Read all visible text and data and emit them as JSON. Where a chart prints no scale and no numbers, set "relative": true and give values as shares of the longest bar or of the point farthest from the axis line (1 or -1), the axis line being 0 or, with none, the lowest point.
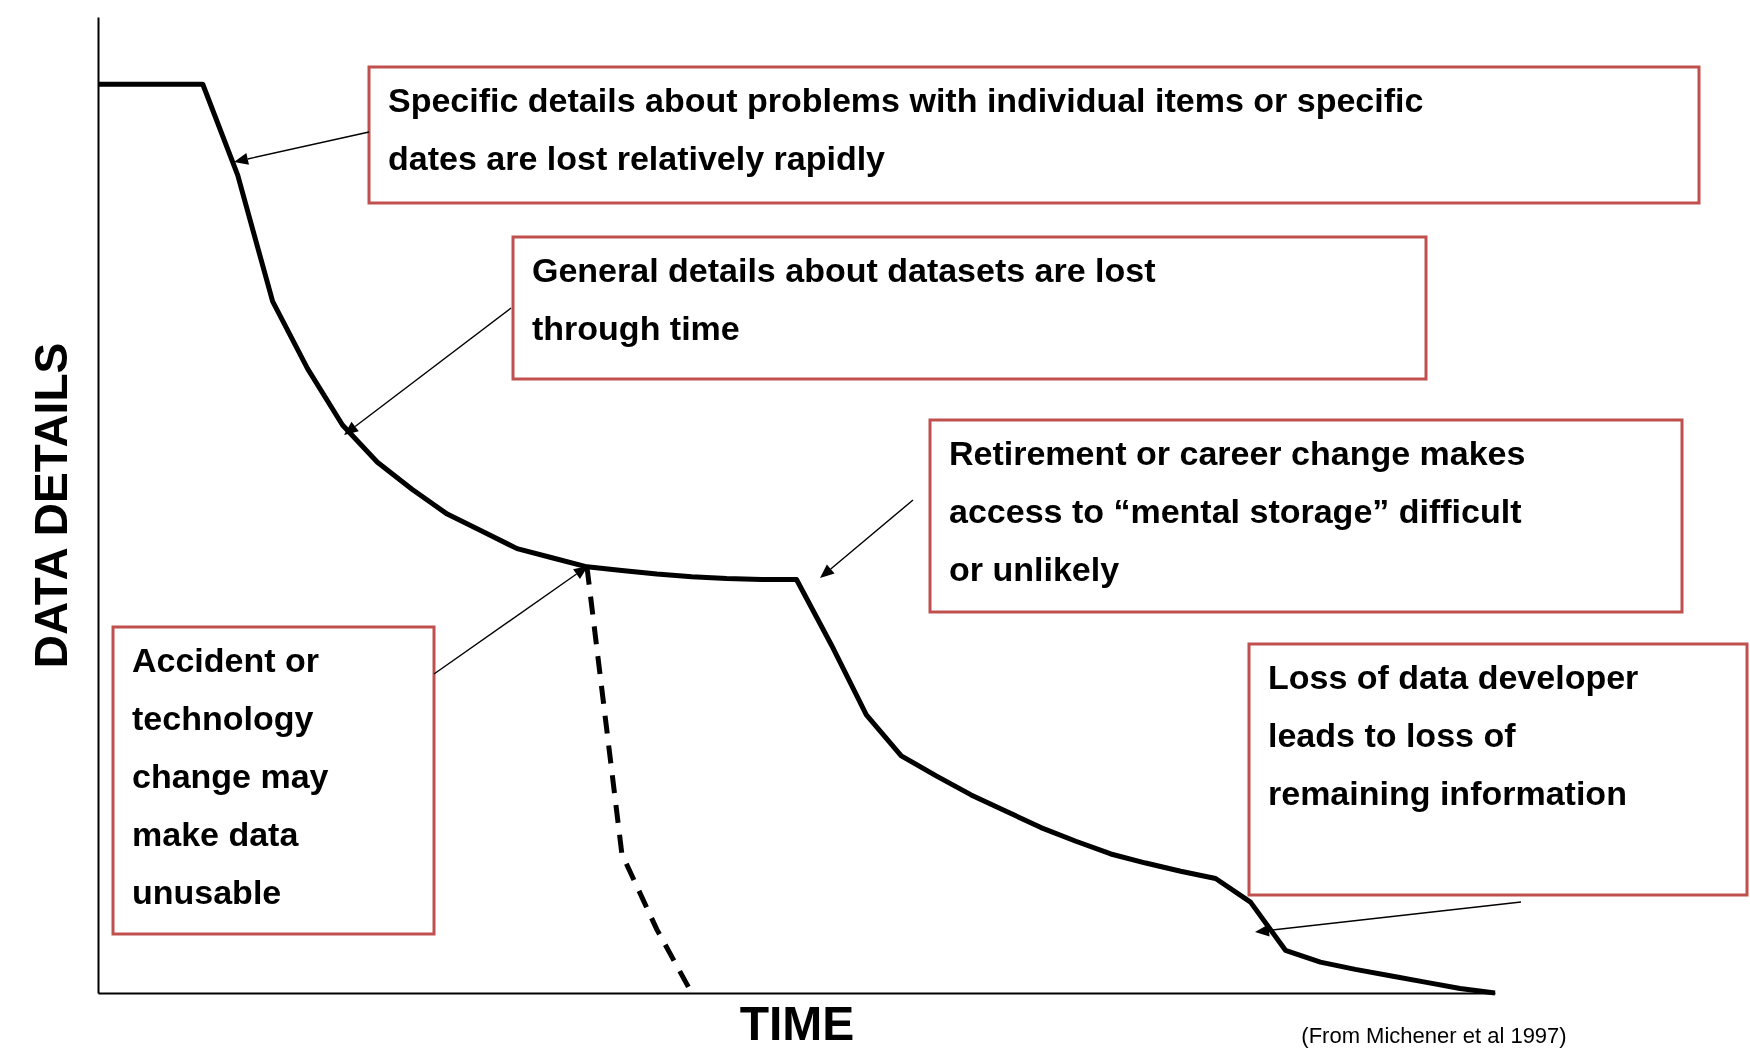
{
  "chart_data": {
    "type": "line",
    "relative": true,
    "xlabel": "TIME",
    "ylabel": "DATA DETAILS",
    "tick_labels": false,
    "categories": [
      null,
      null,
      null,
      null,
      null,
      null,
      null,
      null,
      null,
      null,
      null,
      null,
      null,
      null,
      null,
      null,
      null,
      null,
      null,
      null,
      null,
      null,
      null,
      null,
      null,
      null,
      null,
      null,
      null,
      null,
      null,
      null,
      null,
      null,
      null,
      null,
      null,
      null,
      null,
      null,
      null
    ],
    "series": [
      {
        "color": "#000000",
        "line_style": "solid",
        "values": [
          1,
          1,
          1,
          1,
          0.9,
          0.761,
          0.687,
          0.625,
          0.584,
          0.554,
          0.527,
          0.508,
          0.489,
          0.479,
          0.469,
          0.465,
          0.461,
          0.458,
          0.456,
          0.455,
          0.455,
          0.383,
          0.306,
          0.261,
          0.239,
          0.218,
          0.2,
          0.182,
          0.167,
          0.153,
          0.143,
          0.134,
          0.126,
          0.1,
          0.047,
          0.034,
          0.026,
          0.019,
          0.012,
          0.005,
          0
        ]
      },
      {
        "color": "#000000",
        "line_style": "dashed",
        "values": [
          null,
          null,
          null,
          null,
          null,
          null,
          null,
          null,
          null,
          null,
          null,
          null,
          null,
          null,
          0.469,
          0.153,
          0.07,
          0,
          null,
          null,
          null,
          null,
          null,
          null,
          null,
          null,
          null,
          null,
          null,
          null,
          null,
          null,
          null,
          null,
          null,
          null,
          null,
          null,
          null,
          null,
          null
        ]
      }
    ],
    "annotations": [
      "Specific details about problems with individual items or specific dates are lost relatively rapidly",
      "General details about datasets are lost through time",
      "Retirement or career change makes access to “mental storage” difficult or unlikely",
      "Accident or technology change may make data unusable",
      "Loss of data developer leads to loss of remaining information",
      "(From Michener et al 1997)"
    ]
  }
}
